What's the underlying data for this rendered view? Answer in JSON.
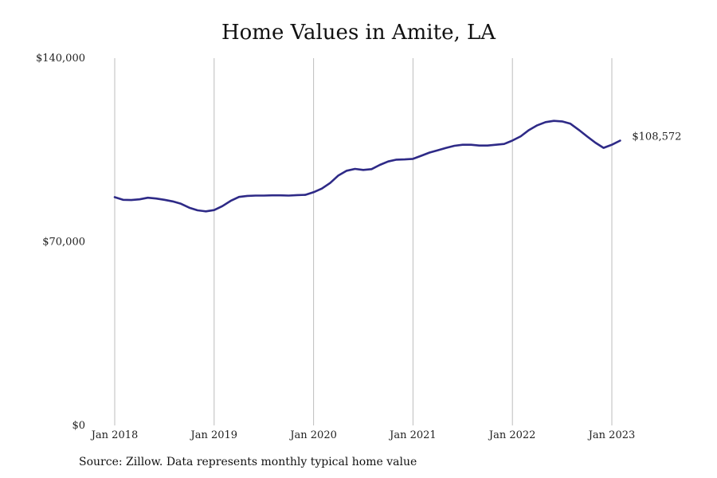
{
  "chart_data": {
    "type": "line",
    "title": "Home Values in Amite, LA",
    "xlabel": "",
    "ylabel": "",
    "ylim": [
      0,
      140000
    ],
    "yticks": [
      0,
      70000,
      140000
    ],
    "ytick_labels": [
      "$0",
      "$70,000",
      "$140,000"
    ],
    "xtick_labels": [
      "Jan 2018",
      "Jan 2019",
      "Jan 2020",
      "Jan 2021",
      "Jan 2022",
      "Jan 2023"
    ],
    "grid": "vertical",
    "line_color": "#2e2a87",
    "end_label": "$108,572",
    "series": [
      {
        "start": "2018-01",
        "values": [
          87000,
          86000,
          85900,
          86200,
          86800,
          86500,
          86000,
          85400,
          84500,
          83000,
          82000,
          81600,
          82100,
          83600,
          85600,
          87100,
          87500,
          87600,
          87600,
          87700,
          87700,
          87600,
          87800,
          87900,
          88900,
          90300,
          92400,
          95300,
          97100,
          97800,
          97400,
          97700,
          99300,
          100600,
          101300,
          101400,
          101600,
          102800,
          104000,
          104900,
          105800,
          106600,
          107000,
          107000,
          106700,
          106700,
          107000,
          107300,
          108600,
          110200,
          112600,
          114400,
          115600,
          116100,
          115900,
          115000,
          112700,
          110200,
          107800,
          105800,
          107000,
          108572
        ]
      }
    ]
  },
  "source_note": "Source: Zillow. Data represents monthly typical home value"
}
